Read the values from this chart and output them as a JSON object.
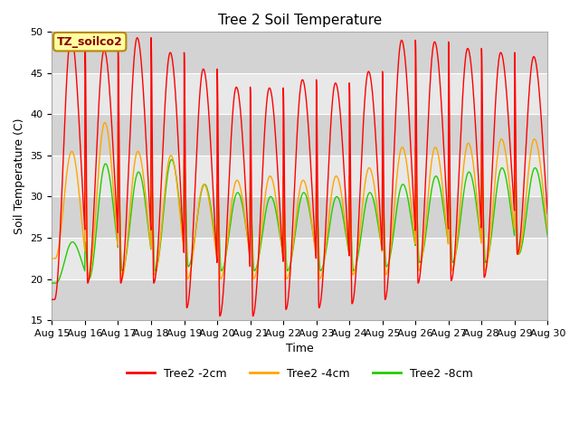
{
  "title": "Tree 2 Soil Temperature",
  "xlabel": "Time",
  "ylabel": "Soil Temperature (C)",
  "ylim": [
    15,
    50
  ],
  "annotation_text": "TZ_soilco2",
  "xtick_labels": [
    "Aug 15",
    "Aug 16",
    "Aug 17",
    "Aug 18",
    "Aug 19",
    "Aug 20",
    "Aug 21",
    "Aug 22",
    "Aug 23",
    "Aug 24",
    "Aug 25",
    "Aug 26",
    "Aug 27",
    "Aug 28",
    "Aug 29",
    "Aug 30"
  ],
  "ytick_labels": [
    15,
    20,
    25,
    30,
    35,
    40,
    45,
    50
  ],
  "line_colors": {
    "2cm": "#FF0000",
    "4cm": "#FFA500",
    "8cm": "#22CC00"
  },
  "legend_labels": [
    "Tree2 -2cm",
    "Tree2 -4cm",
    "Tree2 -8cm"
  ],
  "background_color": "#ffffff",
  "plot_bg_color": "#e8e8e8",
  "band_color": "#d3d3d3",
  "title_fontsize": 11,
  "axis_label_fontsize": 9,
  "tick_fontsize": 8,
  "legend_fontsize": 9,
  "n_days": 15,
  "red_peaks": [
    49.5,
    47.8,
    49.3,
    47.5,
    45.5,
    43.3,
    43.2,
    44.2,
    43.8,
    45.2,
    49.0,
    48.8,
    48.0,
    47.5,
    47.0
  ],
  "red_troughs": [
    17.5,
    19.5,
    19.5,
    19.5,
    16.5,
    15.5,
    15.5,
    16.3,
    16.5,
    17.0,
    17.5,
    19.5,
    19.8,
    20.2,
    23.0
  ],
  "orange_peaks": [
    35.5,
    39.0,
    35.5,
    35.0,
    31.5,
    32.0,
    32.5,
    32.0,
    32.5,
    33.5,
    36.0,
    36.0,
    36.5,
    37.0,
    37.0
  ],
  "orange_troughs": [
    22.5,
    20.0,
    20.0,
    20.5,
    20.0,
    20.0,
    20.0,
    20.0,
    20.0,
    20.5,
    20.5,
    21.0,
    21.0,
    21.0,
    23.0
  ],
  "green_peaks": [
    24.5,
    34.0,
    33.0,
    34.5,
    31.5,
    30.5,
    30.0,
    30.5,
    30.0,
    30.5,
    31.5,
    32.5,
    33.0,
    33.5,
    33.5
  ],
  "green_troughs": [
    19.5,
    20.0,
    21.0,
    21.0,
    21.5,
    21.0,
    21.0,
    21.0,
    21.0,
    21.0,
    21.5,
    22.0,
    22.0,
    22.0,
    23.0
  ],
  "peak_time": 0.58,
  "trough_time": 0.08
}
